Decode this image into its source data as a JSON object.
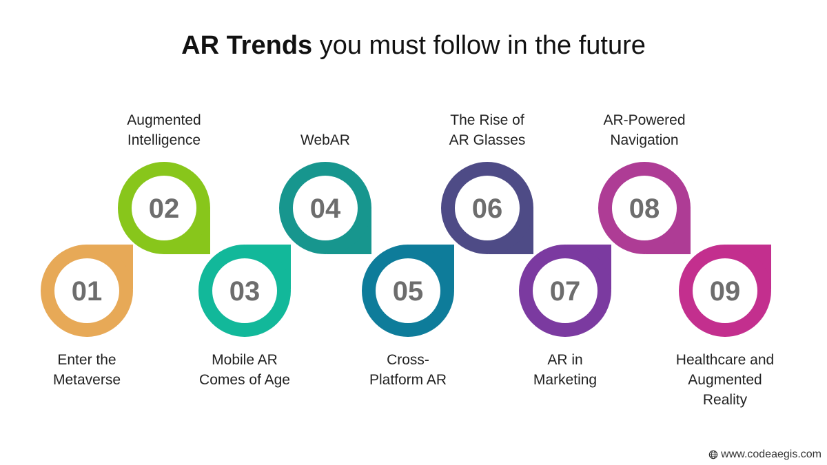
{
  "title": {
    "bold": "AR Trends",
    "rest": "you must follow in the future"
  },
  "trends": [
    {
      "number": "01",
      "lines": [
        "Enter the",
        "Metaverse"
      ],
      "color": "#E7A957"
    },
    {
      "number": "02",
      "lines": [
        "Augmented",
        "Intelligence"
      ],
      "color": "#88C61B"
    },
    {
      "number": "03",
      "lines": [
        "Mobile AR",
        "Comes of Age"
      ],
      "color": "#12B89A"
    },
    {
      "number": "04",
      "lines": [
        "WebAR"
      ],
      "color": "#17968E"
    },
    {
      "number": "05",
      "lines": [
        "Cross-",
        "Platform AR"
      ],
      "color": "#0E7C9A"
    },
    {
      "number": "06",
      "lines": [
        "The Rise of",
        "AR Glasses"
      ],
      "color": "#4E4B86"
    },
    {
      "number": "07",
      "lines": [
        "AR in",
        "Marketing"
      ],
      "color": "#7B3AA0"
    },
    {
      "number": "08",
      "lines": [
        "AR-Powered",
        "Navigation"
      ],
      "color": "#AE3C95"
    },
    {
      "number": "09",
      "lines": [
        "Healthcare and",
        "Augmented",
        "Reality"
      ],
      "color": "#C32F8E"
    }
  ],
  "footer": {
    "icon": "globe-icon",
    "url": "www.codeaegis.com"
  }
}
